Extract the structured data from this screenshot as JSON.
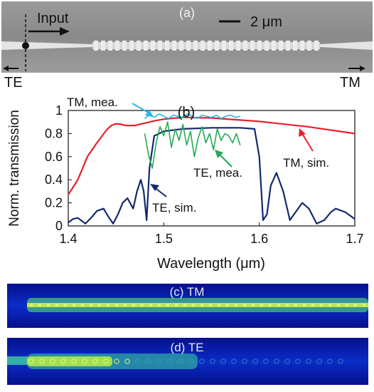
{
  "panel_a": {
    "label": "(a)",
    "scalebar_label": "2 μm",
    "input_label": "Input",
    "te_label": "TE",
    "tm_label": "TM"
  },
  "panel_c": {
    "label": "(c) TM"
  },
  "panel_d": {
    "label": "(d) TE"
  },
  "colors": {
    "tm_sim": "#e8202a",
    "te_sim": "#142a6e",
    "tm_mea": "#29b6e8",
    "te_mea": "#22aa55"
  },
  "chart_data": {
    "type": "line",
    "title": "(b)",
    "xlabel": "Wavelength (μm)",
    "ylabel": "Norm. transmission",
    "xlim": [
      1.4,
      1.7
    ],
    "ylim": [
      0,
      1.0
    ],
    "xticks": [
      "1.4",
      "1.5",
      "1.6",
      "1.7"
    ],
    "yticks": [
      "0",
      "0.2",
      "0.4",
      "0.6",
      "0.8",
      "1"
    ],
    "grid": false,
    "series": [
      {
        "name": "TM, sim.",
        "color": "#e8202a",
        "x": [
          1.4,
          1.41,
          1.42,
          1.43,
          1.44,
          1.445,
          1.45,
          1.455,
          1.46,
          1.47,
          1.48,
          1.49,
          1.5,
          1.52,
          1.55,
          1.6,
          1.65,
          1.7
        ],
        "y": [
          0.27,
          0.4,
          0.6,
          0.72,
          0.83,
          0.87,
          0.885,
          0.88,
          0.87,
          0.87,
          0.89,
          0.91,
          0.925,
          0.94,
          0.935,
          0.905,
          0.86,
          0.8
        ]
      },
      {
        "name": "TE, sim.",
        "color": "#142a6e",
        "x": [
          1.4,
          1.405,
          1.41,
          1.418,
          1.425,
          1.43,
          1.437,
          1.442,
          1.447,
          1.452,
          1.457,
          1.462,
          1.468,
          1.472,
          1.476,
          1.479,
          1.482,
          1.485,
          1.49,
          1.5,
          1.52,
          1.55,
          1.58,
          1.595,
          1.6,
          1.604,
          1.608,
          1.612,
          1.618,
          1.625,
          1.632,
          1.638,
          1.645,
          1.652,
          1.66,
          1.668,
          1.675,
          1.68,
          1.69,
          1.7
        ],
        "y": [
          0.03,
          0.06,
          0.07,
          0.02,
          0.08,
          0.13,
          0.15,
          0.08,
          0.02,
          0.1,
          0.2,
          0.24,
          0.15,
          0.3,
          0.4,
          0.3,
          0.05,
          0.5,
          0.78,
          0.82,
          0.84,
          0.85,
          0.85,
          0.84,
          0.6,
          0.05,
          0.1,
          0.35,
          0.46,
          0.3,
          0.05,
          0.12,
          0.2,
          0.15,
          0.02,
          0.05,
          0.12,
          0.15,
          0.12,
          0.06
        ]
      },
      {
        "name": "TM, mea.",
        "color": "#29b6e8",
        "x": [
          1.48,
          1.485,
          1.49,
          1.495,
          1.5,
          1.505,
          1.51,
          1.515,
          1.52,
          1.525,
          1.53,
          1.535,
          1.54,
          1.545,
          1.55,
          1.555,
          1.56,
          1.565,
          1.57,
          1.575,
          1.58
        ],
        "y": [
          0.93,
          0.96,
          0.94,
          0.97,
          0.95,
          0.93,
          0.96,
          0.95,
          0.94,
          0.97,
          0.95,
          0.93,
          0.96,
          0.95,
          0.94,
          0.96,
          0.93,
          0.95,
          0.96,
          0.94,
          0.95
        ]
      },
      {
        "name": "TE, mea.",
        "color": "#22aa55",
        "x": [
          1.48,
          1.484,
          1.488,
          1.492,
          1.496,
          1.5,
          1.504,
          1.508,
          1.512,
          1.516,
          1.52,
          1.524,
          1.528,
          1.532,
          1.536,
          1.54,
          1.544,
          1.548,
          1.552,
          1.556,
          1.56,
          1.564,
          1.568,
          1.572,
          1.576,
          1.58
        ],
        "y": [
          0.8,
          0.62,
          0.5,
          0.72,
          0.86,
          0.78,
          0.9,
          0.68,
          0.84,
          0.74,
          0.88,
          0.7,
          0.82,
          0.6,
          0.76,
          0.86,
          0.72,
          0.8,
          0.66,
          0.84,
          0.74,
          0.8,
          0.78,
          0.72,
          0.8,
          0.7
        ]
      }
    ],
    "annotations": [
      "TM, mea.",
      "TE, mea.",
      "TM, sim.",
      "TE, sim."
    ]
  }
}
